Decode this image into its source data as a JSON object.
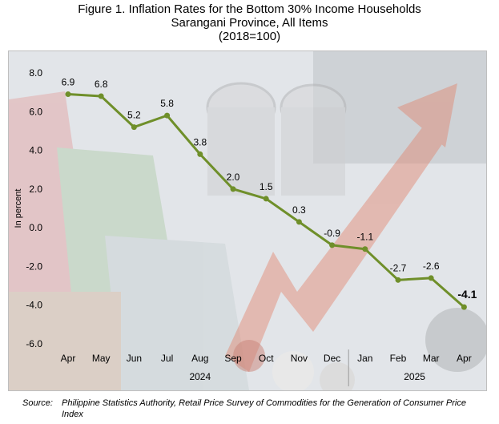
{
  "title": {
    "line1": "Figure 1. Inflation Rates for the Bottom 30% Income Households",
    "line2": "Sarangani Province, All Items",
    "line3": "(2018=100)"
  },
  "chart_data": {
    "type": "line",
    "categories": [
      "Apr",
      "May",
      "Jun",
      "Jul",
      "Aug",
      "Sep",
      "Oct",
      "Nov",
      "Dec",
      "Jan",
      "Feb",
      "Mar",
      "Apr"
    ],
    "year_groups": [
      {
        "label": "2024",
        "start": 0,
        "end": 8
      },
      {
        "label": "2025",
        "start": 9,
        "end": 12
      }
    ],
    "series": [
      {
        "values": [
          6.9,
          6.8,
          5.2,
          5.8,
          3.8,
          2.0,
          1.5,
          0.3,
          -0.9,
          -1.1,
          -2.7,
          -2.6,
          -4.1
        ],
        "labels": [
          "6.9",
          "6.8",
          "5.2",
          "5.8",
          "3.8",
          "2.0",
          "1.5",
          "0.3",
          "-0.9",
          "-1.1",
          "-2.7",
          "-2.6",
          "-4.1"
        ],
        "color": "#6f8f2a"
      }
    ],
    "ylabel": "In percent",
    "ylim": [
      -6.0,
      8.0
    ],
    "yticks": [
      "8.0",
      "6.0",
      "4.0",
      "2.0",
      "0.0",
      "-2.0",
      "-4.0",
      "-6.0"
    ],
    "ytick_values": [
      8,
      6,
      4,
      2,
      0,
      -2,
      -4,
      -6
    ],
    "highlight_last_label": true,
    "grid": false
  },
  "source": {
    "label": "Source:",
    "text": "Philippine Statistics Authority, Retail Price Survey of Commodities for the Generation of Consumer Price Index"
  }
}
